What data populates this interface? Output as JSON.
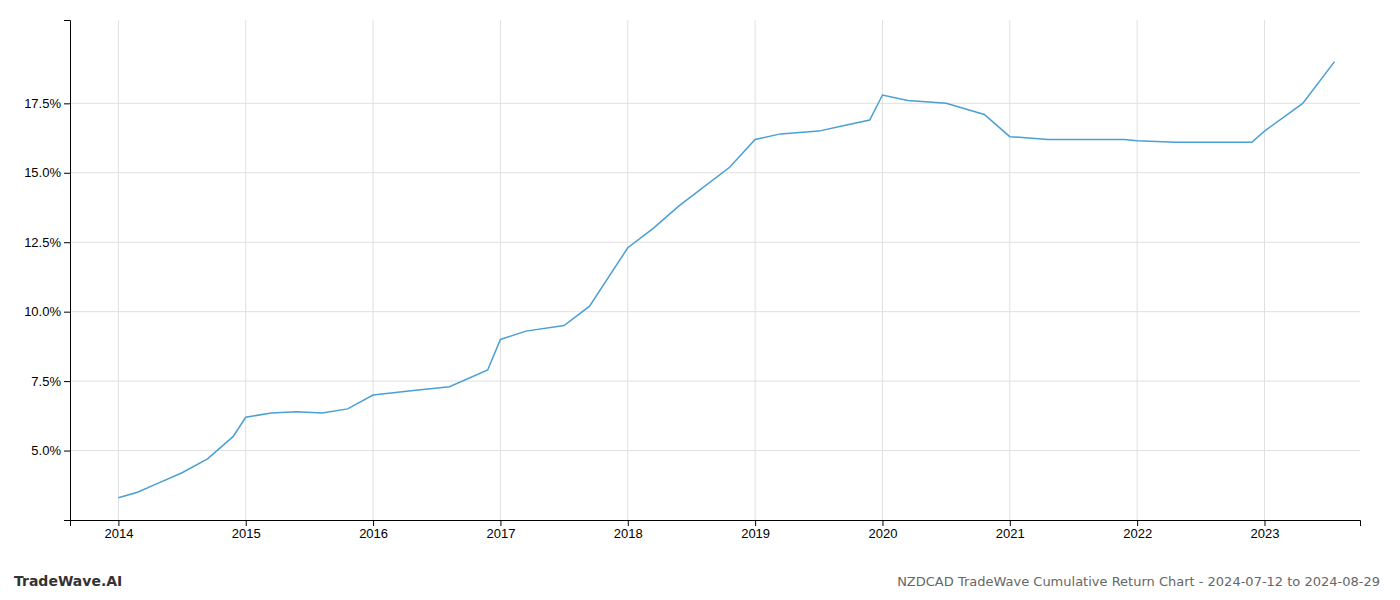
{
  "chart_data": {
    "type": "line",
    "title": "NZDCAD TradeWave Cumulative Return Chart - 2024-07-12 to 2024-08-29",
    "annotations": [
      "TradeWave.AI"
    ],
    "color": "#4a9fd4",
    "x": [
      2014.0,
      2014.15,
      2014.3,
      2014.5,
      2014.7,
      2014.9,
      2015.0,
      2015.2,
      2015.4,
      2015.6,
      2015.8,
      2016.0,
      2016.3,
      2016.6,
      2016.9,
      2017.0,
      2017.2,
      2017.5,
      2017.7,
      2018.0,
      2018.2,
      2018.4,
      2018.6,
      2018.8,
      2019.0,
      2019.2,
      2019.5,
      2019.7,
      2019.9,
      2020.0,
      2020.2,
      2020.5,
      2020.8,
      2021.0,
      2021.3,
      2021.6,
      2021.9,
      2022.0,
      2022.3,
      2022.6,
      2022.9,
      2023.0,
      2023.3,
      2023.55
    ],
    "values": [
      3.3,
      3.5,
      3.8,
      4.2,
      4.7,
      5.5,
      6.2,
      6.35,
      6.4,
      6.35,
      6.5,
      7.0,
      7.15,
      7.3,
      7.9,
      9.0,
      9.3,
      9.5,
      10.2,
      12.3,
      13.0,
      13.8,
      14.5,
      15.2,
      16.2,
      16.4,
      16.5,
      16.7,
      16.9,
      17.8,
      17.6,
      17.5,
      17.1,
      16.3,
      16.2,
      16.2,
      16.2,
      16.15,
      16.1,
      16.1,
      16.1,
      16.5,
      17.5,
      19.0
    ],
    "xlim": [
      2013.62,
      2023.75
    ],
    "xticks": [
      2014,
      2015,
      2016,
      2017,
      2018,
      2019,
      2020,
      2021,
      2022,
      2023
    ],
    "ylim": [
      2.5,
      20.5
    ],
    "yticks": [
      {
        "value": 5.0,
        "label": "5.0%"
      },
      {
        "value": 7.5,
        "label": "7.5%"
      },
      {
        "value": 10.0,
        "label": "10.0%"
      },
      {
        "value": 12.5,
        "label": "12.5%"
      },
      {
        "value": 15.0,
        "label": "15.0%"
      },
      {
        "value": 17.5,
        "label": "17.5%"
      }
    ],
    "grid": true
  }
}
